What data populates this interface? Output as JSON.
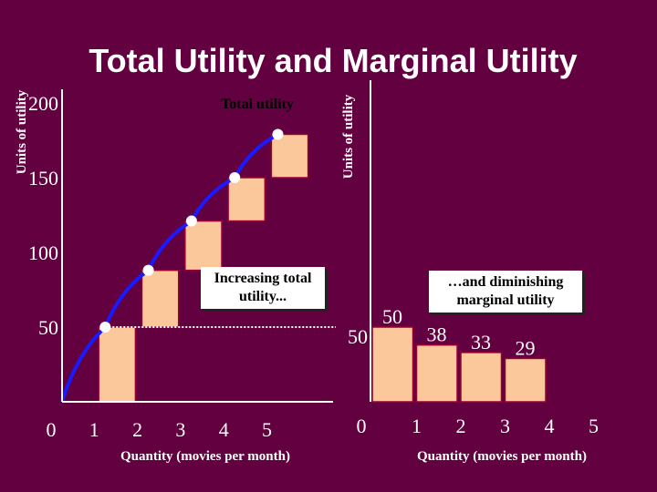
{
  "title": "Total Utility and Marginal Utility",
  "colors": {
    "background": "#620040",
    "bar_fill": "#fac89a",
    "bar_stroke": "#990033",
    "curve": "#1a1aff",
    "point": "#ffffff",
    "axis": "#ffffff"
  },
  "chart_data": [
    {
      "type": "line",
      "name": "total-utility",
      "x": [
        0,
        1,
        2,
        3,
        4,
        5
      ],
      "y": [
        0,
        50,
        88,
        121,
        150,
        179
      ],
      "steps": [
        50,
        38,
        33,
        29,
        29
      ],
      "xlabel": "Quantity (movies per month)",
      "ylabel": "Units of utility",
      "x_ticks": [
        "0",
        "1",
        "2",
        "3",
        "4",
        "5"
      ],
      "y_ticks": [
        "50",
        "100",
        "150",
        "200"
      ],
      "ylim": [
        0,
        215
      ],
      "xlim": [
        0,
        5.5
      ],
      "curve_label": "Total utility",
      "annotation": "Increasing total utility...",
      "reference_line_value": 50
    },
    {
      "type": "bar",
      "name": "marginal-utility",
      "categories": [
        "1",
        "2",
        "3",
        "4"
      ],
      "values": [
        50,
        38,
        33,
        29
      ],
      "value_labels": [
        "50",
        "38",
        "33",
        "29"
      ],
      "x_ticks": [
        "0",
        "1",
        "2",
        "3",
        "4",
        "5"
      ],
      "y_tick": "50",
      "xlabel": "Quantity (movies per month)",
      "ylabel": "Units of utility",
      "annotation": "…and diminishing marginal utility"
    }
  ]
}
